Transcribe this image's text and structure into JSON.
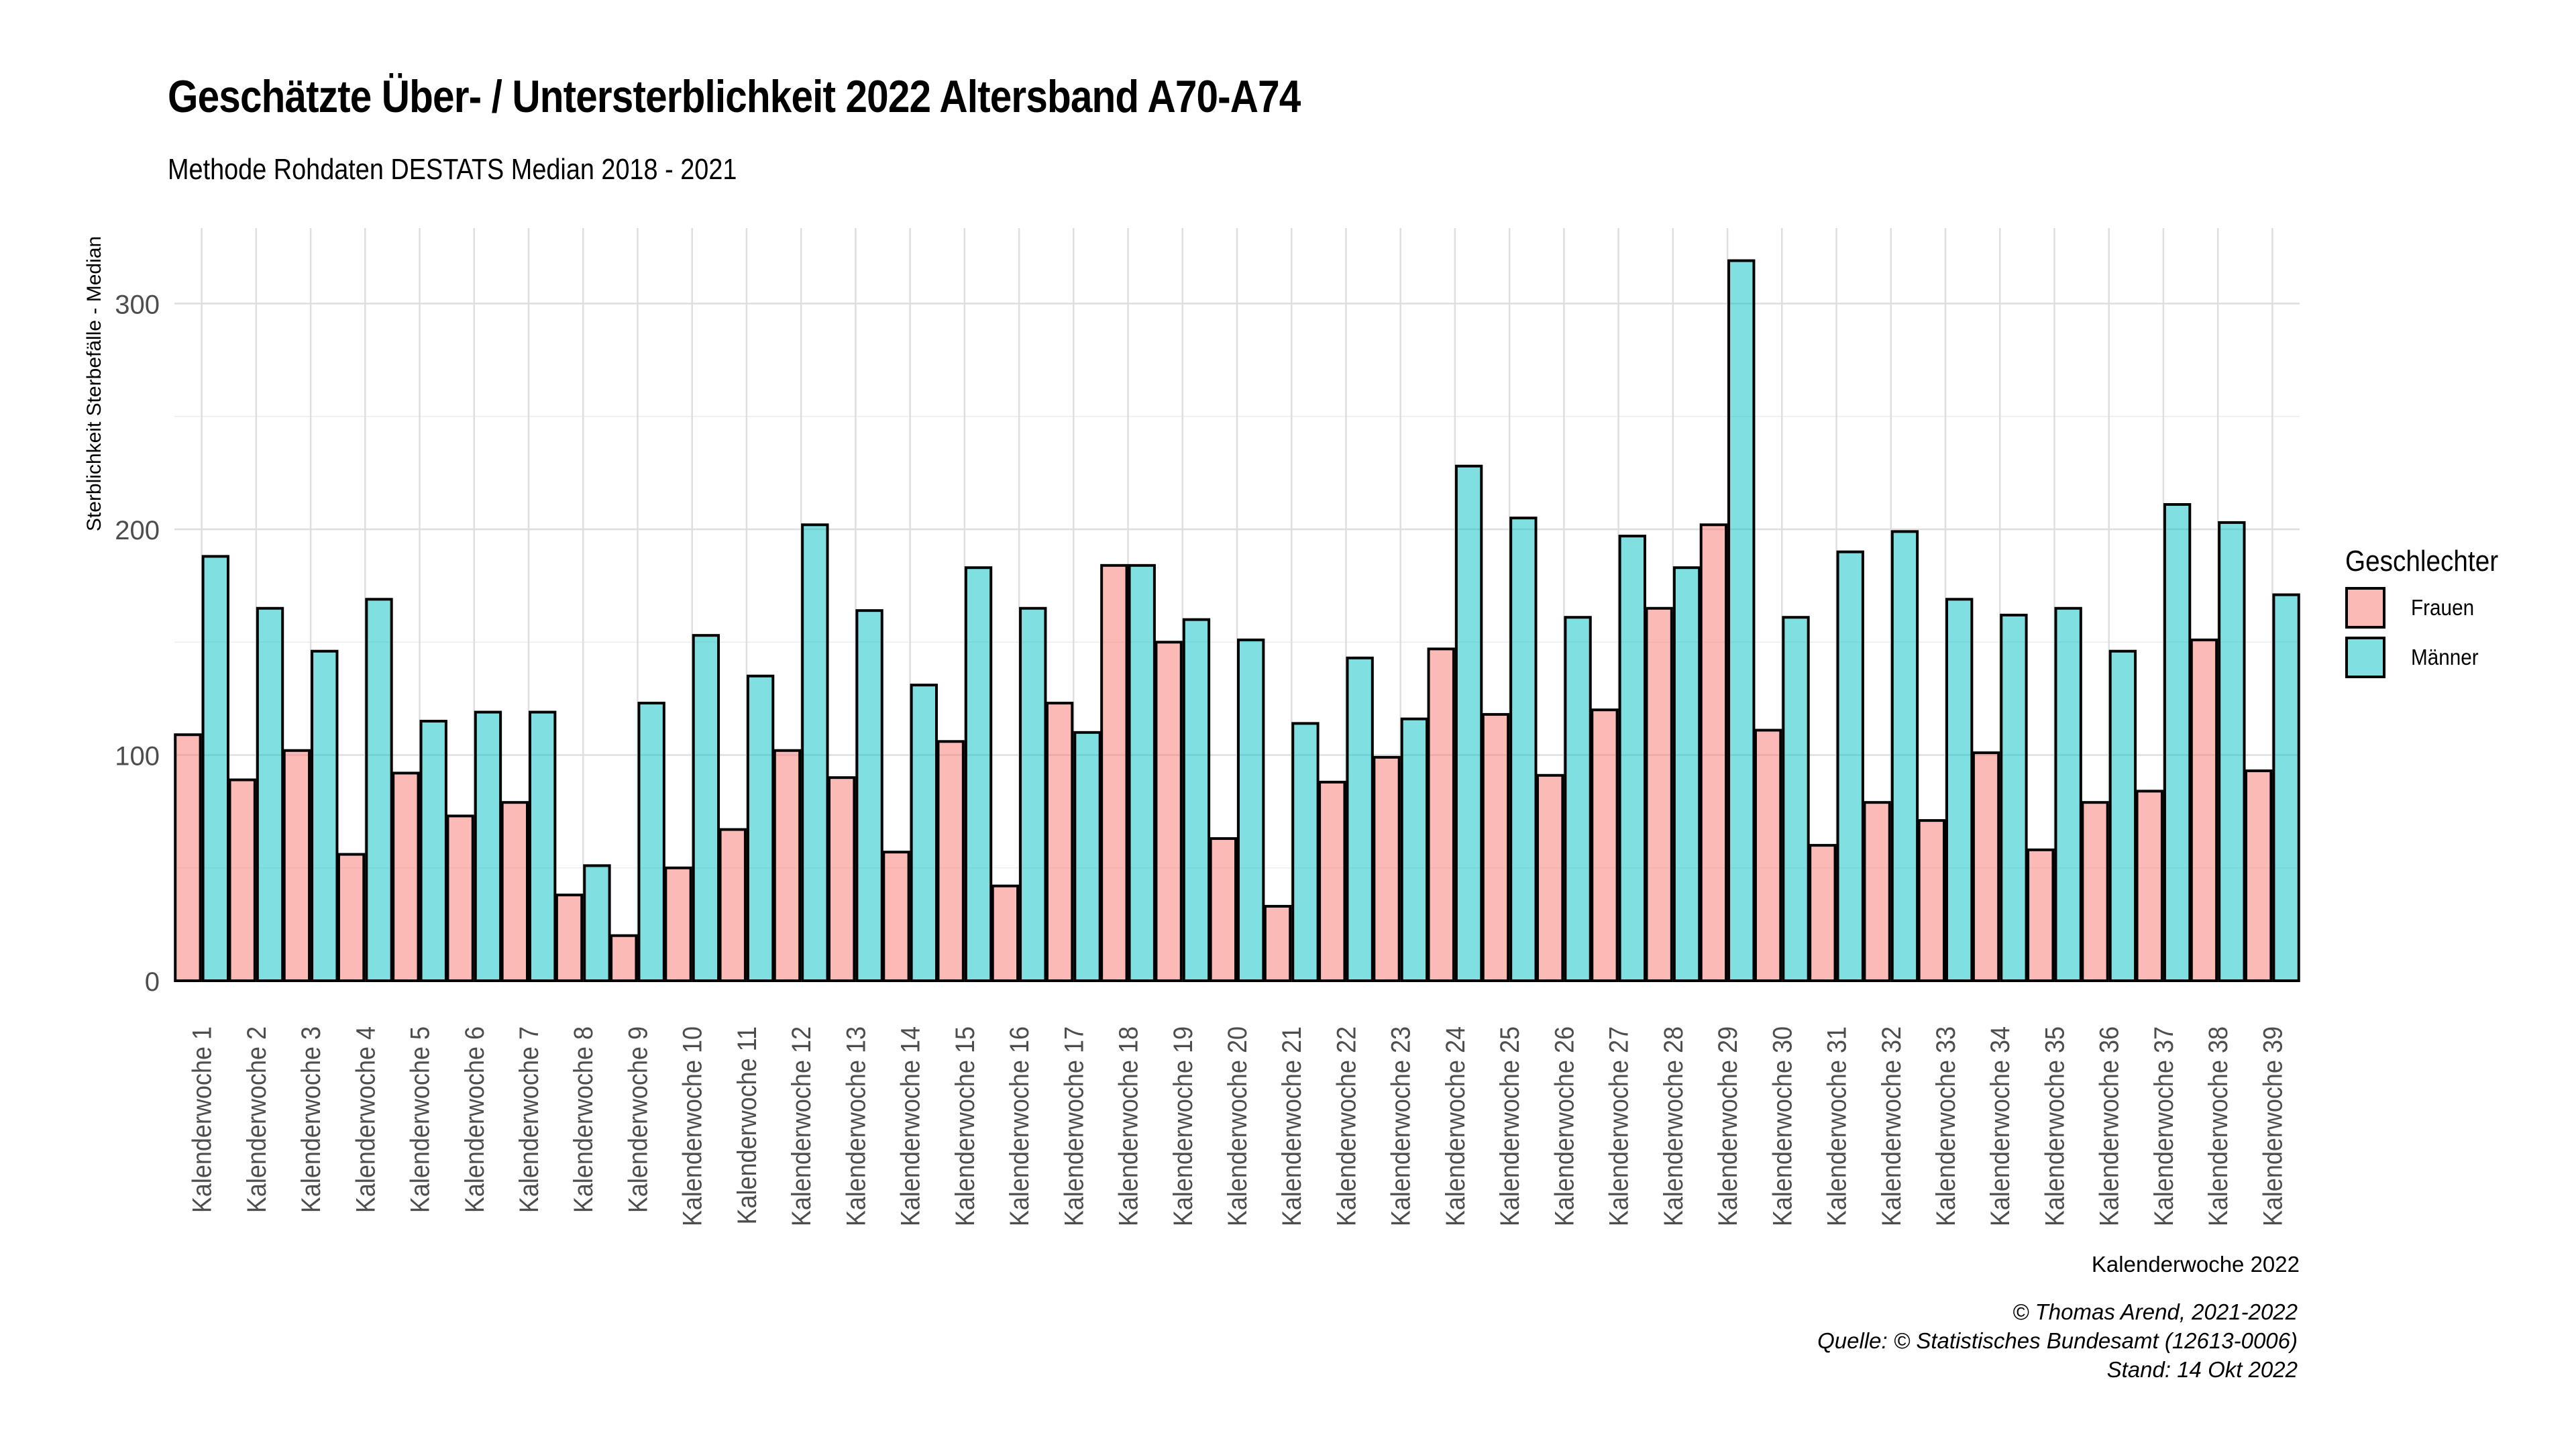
{
  "title": "Geschätzte Über- / Untersterblichkeit 2022 Altersband A70-A74",
  "subtitle": "Methode Rohdaten DESTATS Median 2018 - 2021",
  "legend": {
    "title": "Geschlechter",
    "items": [
      {
        "label": "Frauen",
        "color": "#F8766D"
      },
      {
        "label": "Männer",
        "color": "#00BFC4"
      }
    ]
  },
  "caption": {
    "line1": "© Thomas Arend, 2021-2022",
    "line2": "Quelle: © Statistisches Bundesamt (12613-0006)",
    "line3": "Stand: 14 Okt 2022"
  },
  "chart_data": {
    "type": "bar",
    "title": "Geschätzte Über- / Untersterblichkeit 2022 Altersband A70-A74",
    "subtitle": "Methode Rohdaten DESTATS Median 2018 - 2021",
    "xlabel": "Kalenderwoche 2022",
    "ylabel": "Sterblichkeit Sterbefälle - Median",
    "ylim": [
      0,
      335
    ],
    "yticks": [
      0,
      100,
      200,
      300
    ],
    "grid": true,
    "legend_position": "right",
    "categories": [
      "Kalenderwoche 1",
      "Kalenderwoche 2",
      "Kalenderwoche 3",
      "Kalenderwoche 4",
      "Kalenderwoche 5",
      "Kalenderwoche 6",
      "Kalenderwoche 7",
      "Kalenderwoche 8",
      "Kalenderwoche 9",
      "Kalenderwoche 10",
      "Kalenderwoche 11",
      "Kalenderwoche 12",
      "Kalenderwoche 13",
      "Kalenderwoche 14",
      "Kalenderwoche 15",
      "Kalenderwoche 16",
      "Kalenderwoche 17",
      "Kalenderwoche 18",
      "Kalenderwoche 19",
      "Kalenderwoche 20",
      "Kalenderwoche 21",
      "Kalenderwoche 22",
      "Kalenderwoche 23",
      "Kalenderwoche 24",
      "Kalenderwoche 25",
      "Kalenderwoche 26",
      "Kalenderwoche 27",
      "Kalenderwoche 28",
      "Kalenderwoche 29",
      "Kalenderwoche 30",
      "Kalenderwoche 31",
      "Kalenderwoche 32",
      "Kalenderwoche 33",
      "Kalenderwoche 34",
      "Kalenderwoche 35",
      "Kalenderwoche 36",
      "Kalenderwoche 37",
      "Kalenderwoche 38",
      "Kalenderwoche 39"
    ],
    "series": [
      {
        "name": "Frauen",
        "color": "#F8766D",
        "values": [
          109,
          89,
          102,
          56,
          92,
          73,
          79,
          38,
          20,
          50,
          67,
          102,
          90,
          57,
          106,
          42,
          123,
          184,
          150,
          63,
          33,
          88,
          99,
          147,
          118,
          91,
          120,
          165,
          202,
          111,
          60,
          79,
          71,
          101,
          58,
          79,
          84,
          151,
          93
        ]
      },
      {
        "name": "Männer",
        "color": "#00BFC4",
        "values": [
          188,
          165,
          146,
          169,
          115,
          119,
          119,
          51,
          123,
          153,
          135,
          202,
          164,
          131,
          183,
          165,
          110,
          184,
          160,
          151,
          114,
          143,
          116,
          228,
          205,
          161,
          197,
          183,
          319,
          161,
          190,
          199,
          169,
          162,
          165,
          146,
          211,
          203,
          171
        ]
      }
    ]
  }
}
